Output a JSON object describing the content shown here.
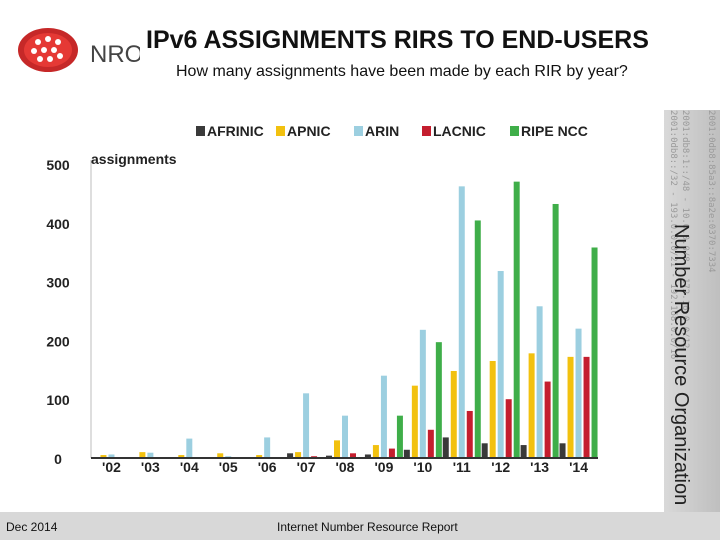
{
  "header": {
    "logo_text": "NRO",
    "title": "IPv6 ASSIGNMENTS RIRS TO END-USERS",
    "subtitle": "How many assignments have been made by each RIR by year?"
  },
  "side_panel": {
    "label": "Number Resource Organization"
  },
  "footer": {
    "left": "Dec 2014",
    "center": "Internet Number Resource Report"
  },
  "chart_data": {
    "type": "bar",
    "ylabel": "assignments",
    "ylim": [
      0,
      500
    ],
    "yticks": [
      "0",
      "100",
      "200",
      "300",
      "400",
      "500"
    ],
    "categories": [
      "'02",
      "'03",
      "'04",
      "'05",
      "'06",
      "'07",
      "'08",
      "'09",
      "'10",
      "'11",
      "'12",
      "'13",
      "'14"
    ],
    "legend_position": "top",
    "series": [
      {
        "name": "AFRINIC",
        "color": "#3a3a3a",
        "values": [
          0,
          0,
          0,
          0,
          0,
          8,
          4,
          6,
          14,
          35,
          25,
          22,
          25
        ]
      },
      {
        "name": "APNIC",
        "color": "#f2c10f",
        "values": [
          5,
          10,
          5,
          8,
          5,
          10,
          30,
          22,
          123,
          148,
          165,
          178,
          172
        ]
      },
      {
        "name": "ARIN",
        "color": "#9ccfe0",
        "values": [
          6,
          9,
          33,
          3,
          35,
          110,
          72,
          140,
          218,
          462,
          318,
          258,
          220
        ]
      },
      {
        "name": "LACNIC",
        "color": "#c41e2e",
        "values": [
          0,
          0,
          0,
          0,
          0,
          3,
          8,
          16,
          48,
          80,
          100,
          130,
          172
        ]
      },
      {
        "name": "RIPE NCC",
        "color": "#3fae49",
        "values": [
          0,
          0,
          0,
          0,
          0,
          0,
          0,
          72,
          197,
          404,
          470,
          432,
          358
        ]
      }
    ]
  }
}
